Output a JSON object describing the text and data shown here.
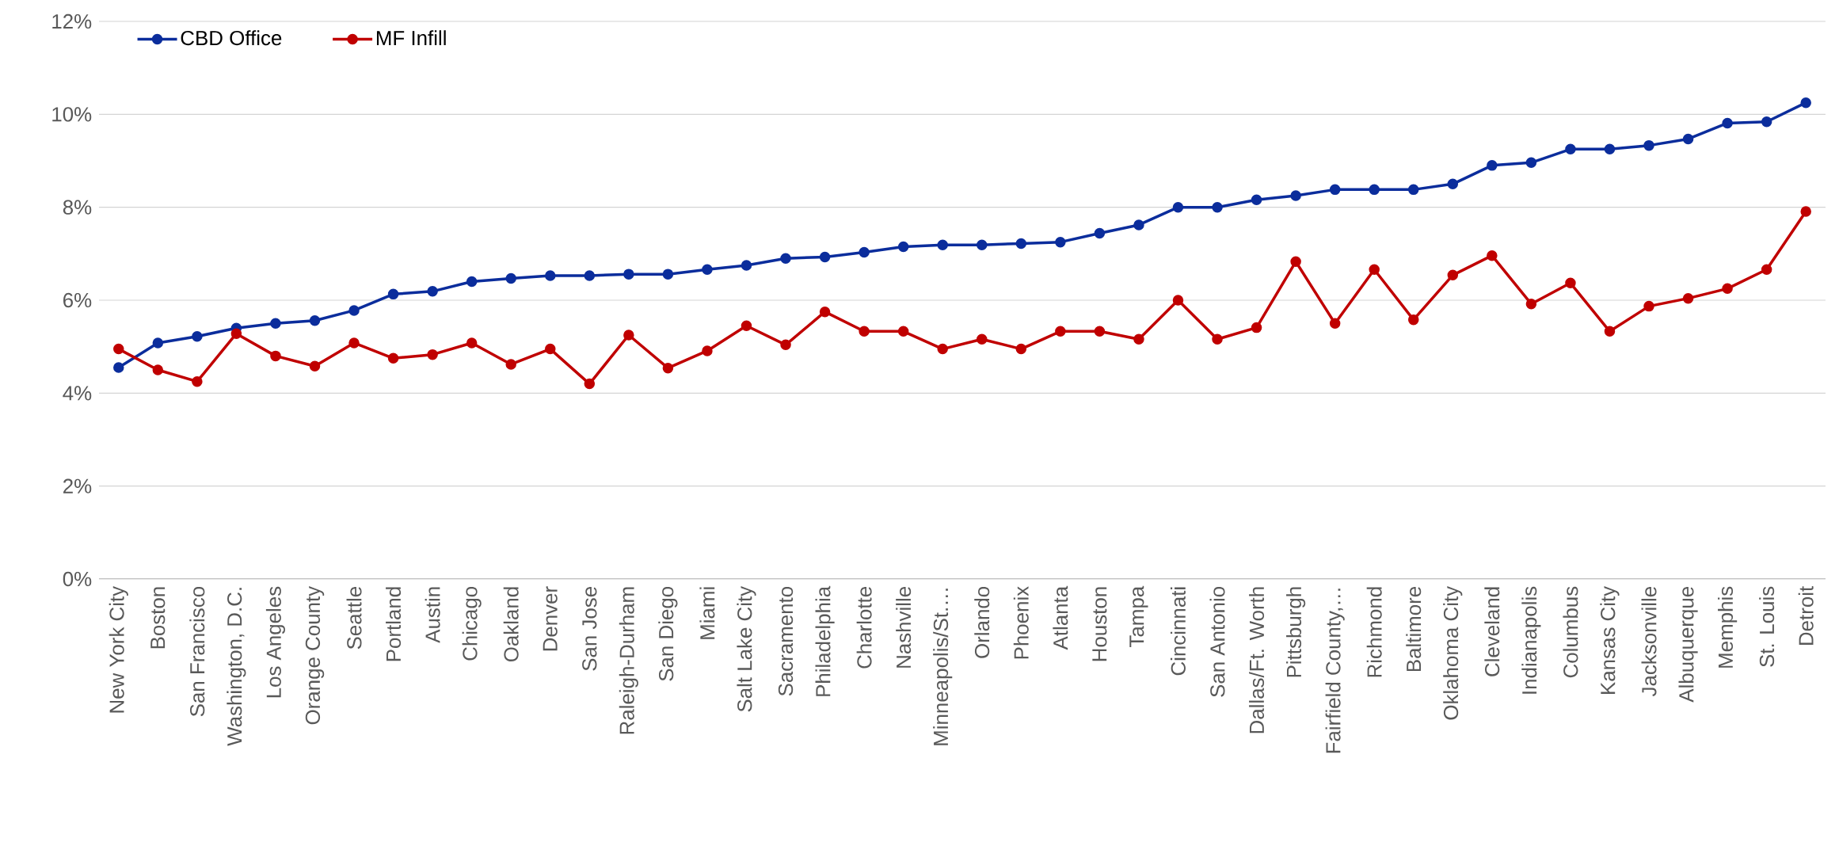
{
  "chart_data": {
    "type": "line",
    "categories": [
      "New York City",
      "Boston",
      "San Francisco",
      "Washington, D.C.",
      "Los Angeles",
      "Orange County",
      "Seattle",
      "Portland",
      "Austin",
      "Chicago",
      "Oakland",
      "Denver",
      "San Jose",
      "Raleigh-Durham",
      "San Diego",
      "Miami",
      "Salt Lake City",
      "Sacramento",
      "Philadelphia",
      "Charlotte",
      "Nashville",
      "Minneapolis/St.…",
      "Orlando",
      "Phoenix",
      "Atlanta",
      "Houston",
      "Tampa",
      "Cincinnati",
      "San Antonio",
      "Dallas/Ft. Worth",
      "Pittsburgh",
      "Fairfield County,…",
      "Richmond",
      "Baltimore",
      "Oklahoma City",
      "Cleveland",
      "Indianapolis",
      "Columbus",
      "Kansas City",
      "Jacksonville",
      "Albuquerque",
      "Memphis",
      "St. Louis",
      "Detroit"
    ],
    "series": [
      {
        "name": "CBD Office",
        "color": "#0b2d9c",
        "values": [
          4.55,
          5.08,
          5.22,
          5.4,
          5.5,
          5.56,
          5.78,
          6.13,
          6.19,
          6.4,
          6.47,
          6.53,
          6.53,
          6.56,
          6.56,
          6.66,
          6.75,
          6.9,
          6.93,
          7.03,
          7.15,
          7.19,
          7.19,
          7.22,
          7.25,
          7.44,
          7.62,
          8.0,
          8.0,
          8.16,
          8.25,
          8.38,
          8.38,
          8.38,
          8.5,
          8.9,
          8.96,
          9.25,
          9.25,
          9.33,
          9.47,
          9.81,
          9.84,
          10.25
        ]
      },
      {
        "name": "MF Infill",
        "color": "#c00000",
        "values": [
          4.95,
          4.5,
          4.25,
          5.28,
          4.8,
          4.58,
          5.08,
          4.75,
          4.83,
          5.08,
          4.62,
          4.95,
          4.2,
          5.25,
          4.54,
          4.91,
          5.45,
          5.04,
          5.75,
          5.33,
          5.33,
          4.95,
          5.16,
          4.95,
          5.33,
          5.33,
          5.16,
          6.0,
          5.16,
          5.41,
          6.83,
          5.5,
          6.66,
          5.58,
          6.54,
          6.96,
          5.92,
          6.37,
          5.33,
          5.87,
          6.04,
          6.25,
          6.66,
          7.91
        ]
      }
    ],
    "ylim": [
      0,
      12
    ],
    "yticks": [
      {
        "value": 0,
        "label": "0%"
      },
      {
        "value": 2,
        "label": "2%"
      },
      {
        "value": 4,
        "label": "4%"
      },
      {
        "value": 6,
        "label": "6%"
      },
      {
        "value": 8,
        "label": "8%"
      },
      {
        "value": 10,
        "label": "10%"
      },
      {
        "value": 12,
        "label": "12%"
      }
    ],
    "grid": "y",
    "legend": "top left",
    "marker": "circle",
    "line_style": "solid"
  }
}
